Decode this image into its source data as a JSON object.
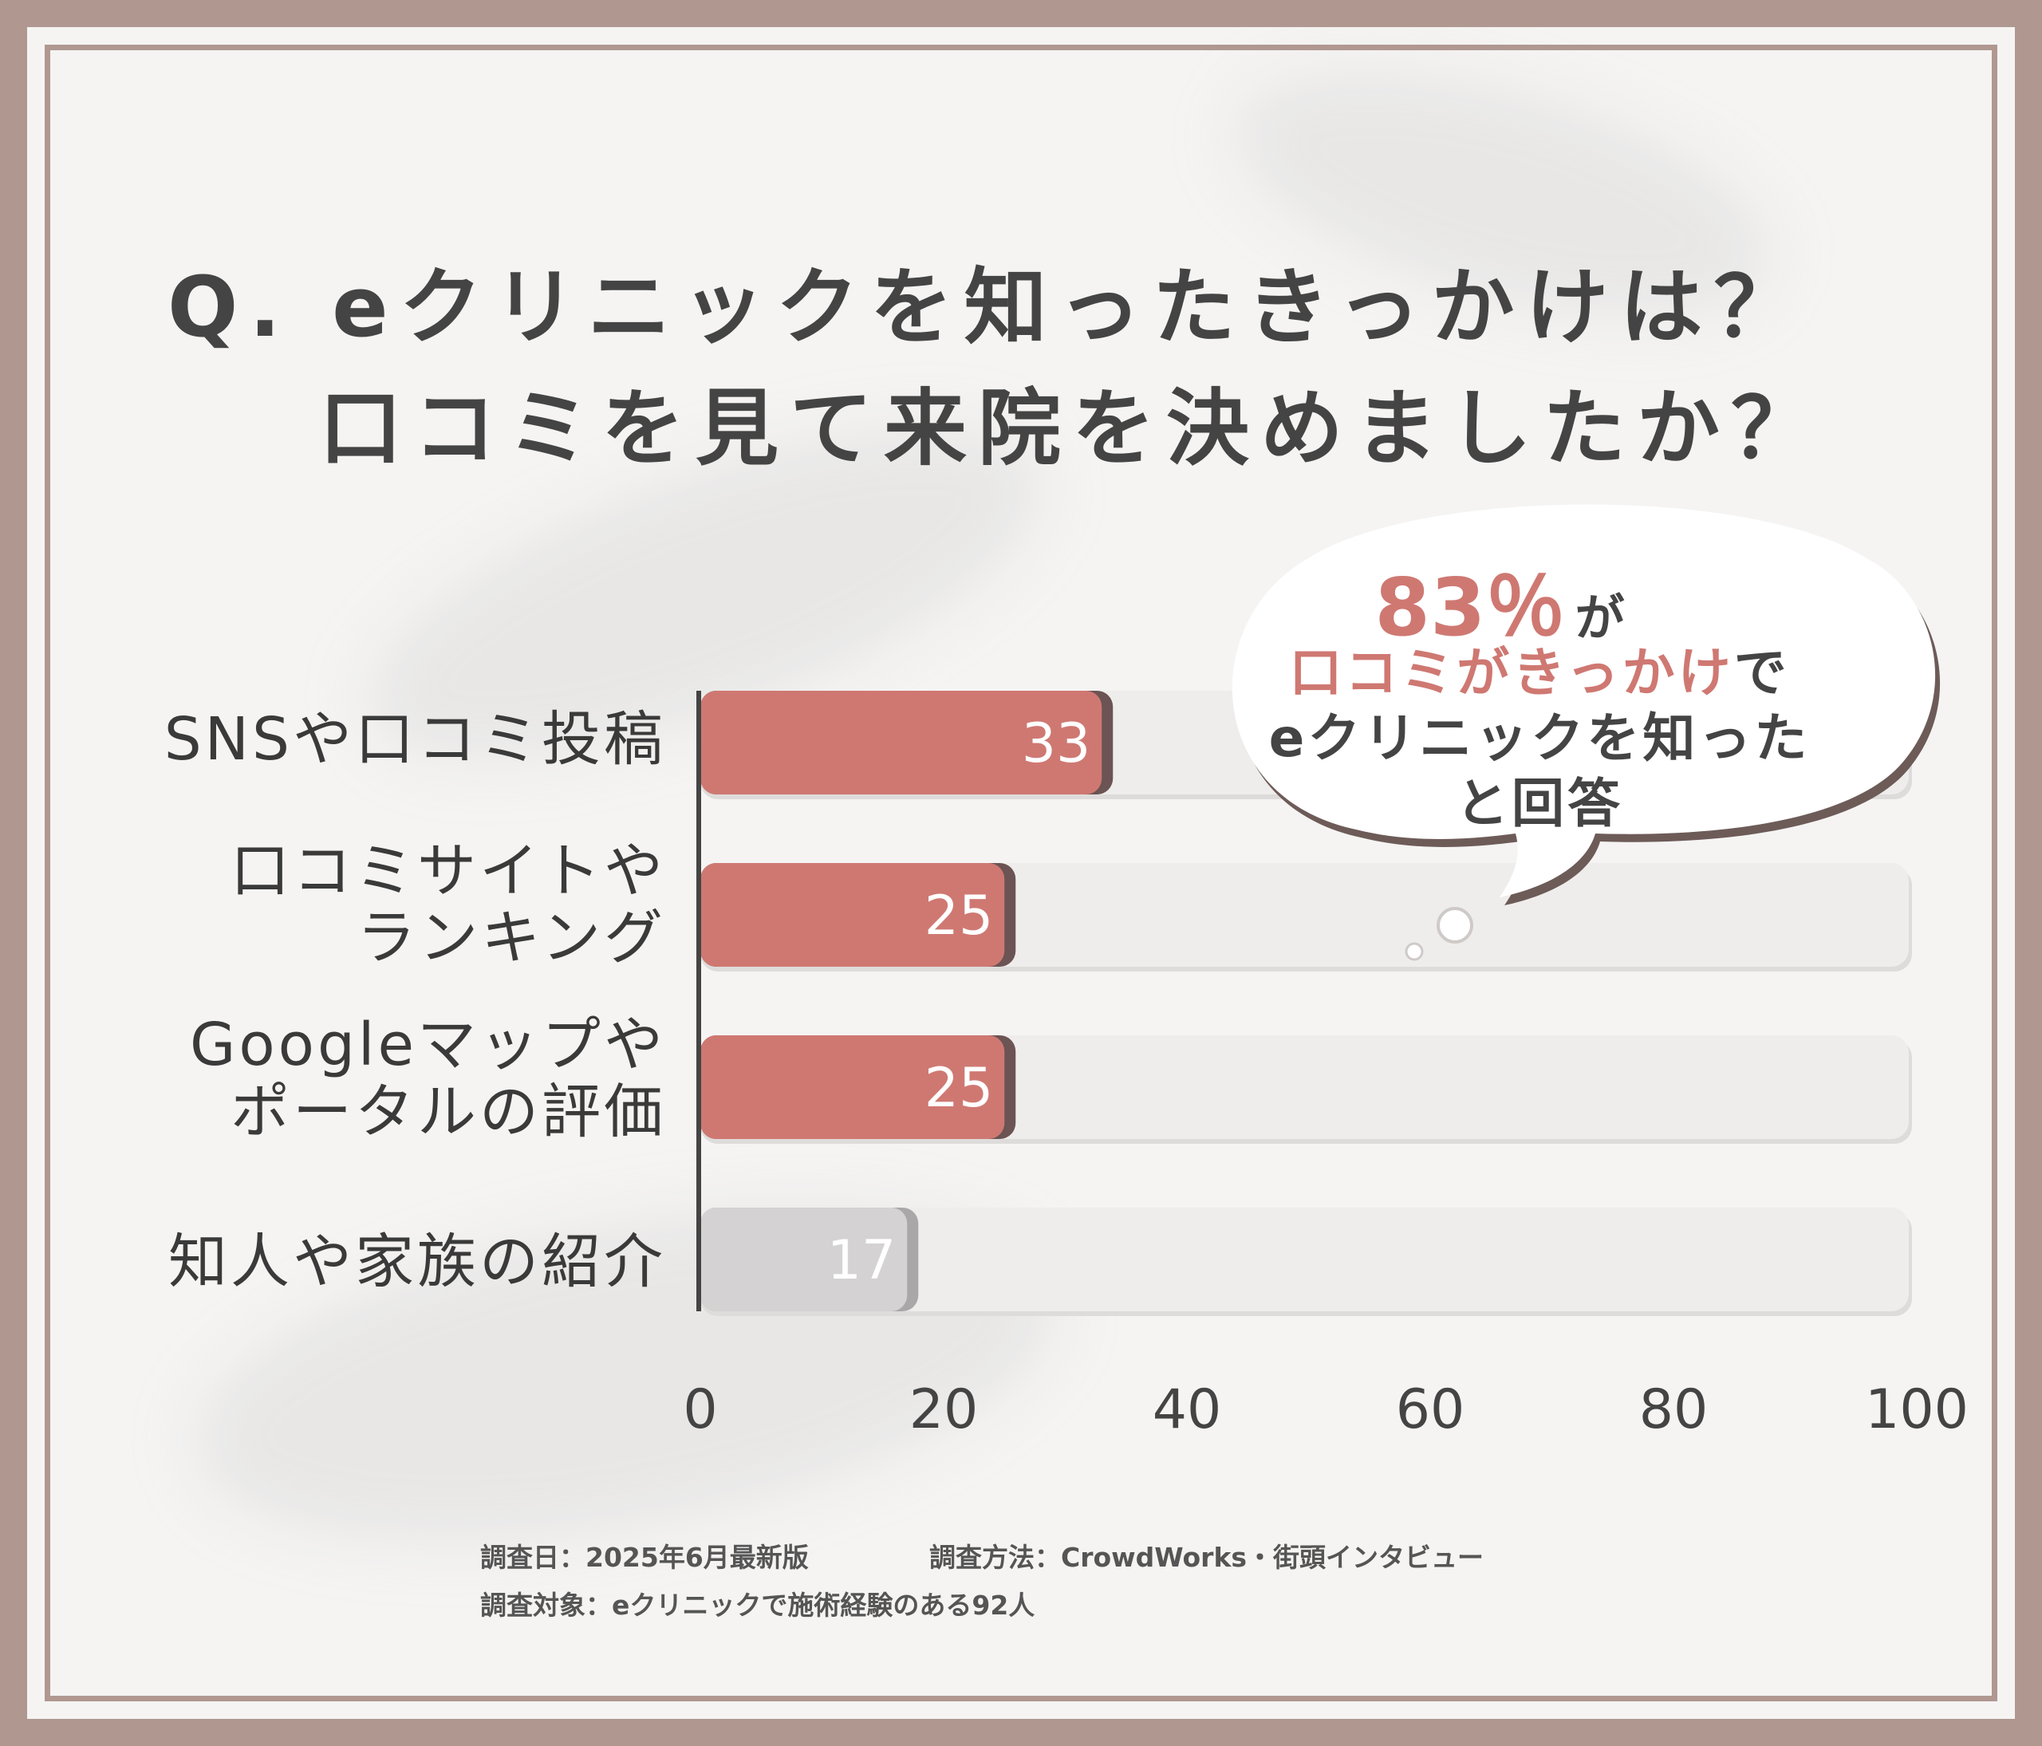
{
  "title": {
    "line1": "Q. eクリニックを知ったきっかけは？",
    "line2": "口コミを見て来院を決めましたか？"
  },
  "callout": {
    "percent": "83％",
    "particle": "が",
    "highlight": "口コミがきっかけ",
    "suffix": "で",
    "line3": "eクリニックを知った",
    "line4": "と回答"
  },
  "chart_data": {
    "type": "bar",
    "orientation": "horizontal",
    "categories": [
      "SNSや口コミ投稿",
      "口コミサイトやランキング",
      "Googleマップやポータルの評価",
      "知人や家族の紹介"
    ],
    "category_lines": [
      [
        "SNSや口コミ投稿"
      ],
      [
        "口コミサイトや",
        "ランキング"
      ],
      [
        "Googleマップや",
        "ポータルの評価"
      ],
      [
        "知人や家族の紹介"
      ]
    ],
    "values": [
      33,
      25,
      25,
      17
    ],
    "value_labels": [
      "33",
      "25",
      "25",
      "17"
    ],
    "xlim": [
      0,
      100
    ],
    "xticks": [
      "0",
      "20",
      "40",
      "60",
      "80",
      "100"
    ],
    "grid": false,
    "colors": {
      "highlight_bar": "#cf7872",
      "muted_bar": "#d4d2d3",
      "track": "#efedeb",
      "axis": "#444444",
      "accent_text": "#cf7872"
    }
  },
  "footer": {
    "date": "調査日：2025年6月最新版",
    "method": "調査方法：CrowdWorks・街頭インタビュー",
    "target": "調査対象：eクリニックで施術経験のある92人"
  }
}
